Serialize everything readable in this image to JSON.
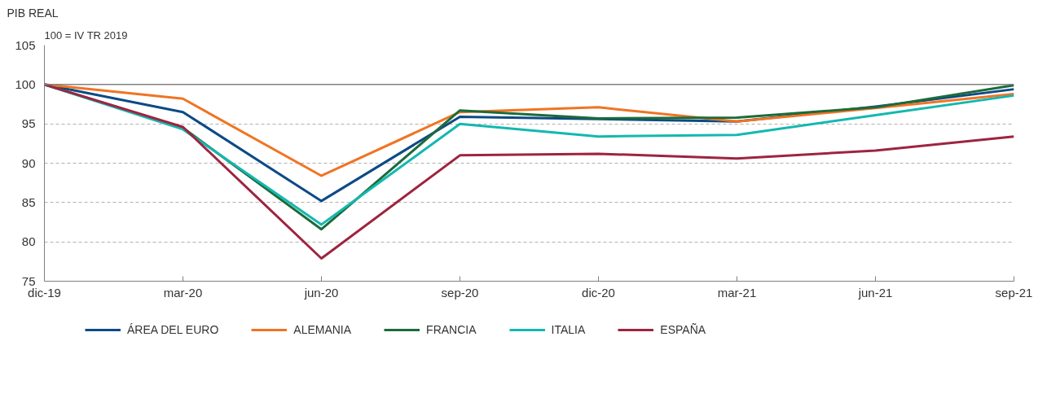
{
  "chart_data": {
    "type": "line",
    "title": "PIB REAL",
    "subtitle": "100 =  IV TR 2019",
    "categories": [
      "dic-19",
      "mar-20",
      "jun-20",
      "sep-20",
      "dic-20",
      "mar-21",
      "jun-21",
      "sep-21"
    ],
    "series": [
      {
        "name": "ÁREA DEL EURO",
        "color": "#0d4a86",
        "values": [
          100,
          96.5,
          85.2,
          95.9,
          95.6,
          95.3,
          97.2,
          99.4
        ]
      },
      {
        "name": "ALEMANIA",
        "color": "#f07423",
        "values": [
          100,
          98.2,
          88.4,
          96.5,
          97.1,
          95.3,
          97.0,
          98.8
        ]
      },
      {
        "name": "FRANCIA",
        "color": "#1c6b3a",
        "values": [
          100,
          94.5,
          81.6,
          96.7,
          95.7,
          95.8,
          97.1,
          99.9
        ]
      },
      {
        "name": "ITALIA",
        "color": "#13b8b0",
        "values": [
          100,
          94.3,
          82.2,
          95.0,
          93.4,
          93.6,
          96.1,
          98.6
        ]
      },
      {
        "name": "ESPAÑA",
        "color": "#9e2440",
        "values": [
          100,
          94.6,
          77.9,
          91.0,
          91.2,
          90.6,
          91.6,
          93.4
        ]
      }
    ],
    "ylim": [
      75,
      105
    ],
    "yticks": [
      75,
      80,
      85,
      90,
      95,
      100,
      105
    ],
    "ref_lines": [
      {
        "axis": "y",
        "value": 100,
        "color": "#808080",
        "line_style": "solid"
      }
    ],
    "grid": "y",
    "legend": "bottom",
    "marker": "none",
    "line_style": "solid"
  }
}
